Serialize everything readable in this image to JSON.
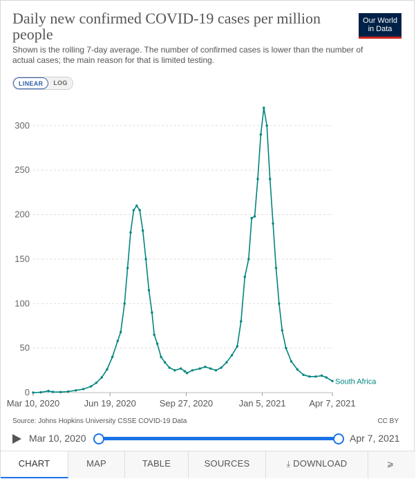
{
  "header": {
    "title": "Daily new confirmed COVID-19 cases per million people",
    "subtitle": "Shown is the rolling 7-day average. The number of confirmed cases is lower than the number of actual cases; the main reason for that is limited testing.",
    "logo_line1": "Our World",
    "logo_line2": "in Data"
  },
  "scale_toggle": {
    "linear": "LINEAR",
    "log": "LOG",
    "selected": "LINEAR"
  },
  "chart_data": {
    "type": "line",
    "title": "Daily new confirmed COVID-19 cases per million people",
    "x_tick_labels": [
      "Mar 10, 2020",
      "Jun 19, 2020",
      "Sep 27, 2020",
      "Jan 5, 2021",
      "Apr 7, 2021"
    ],
    "y_ticks": [
      0,
      50,
      100,
      150,
      200,
      250,
      300
    ],
    "ylim": [
      0,
      320
    ],
    "xlim": [
      "2020-03-10",
      "2021-04-07"
    ],
    "grid": "horizontal dashed",
    "series": [
      {
        "name": "South Africa",
        "color": "#00847e",
        "points": [
          [
            "2020-03-10",
            0
          ],
          [
            "2020-03-20",
            0.3
          ],
          [
            "2020-03-30",
            1.8
          ],
          [
            "2020-04-05",
            0.8
          ],
          [
            "2020-04-15",
            0.6
          ],
          [
            "2020-04-25",
            1.2
          ],
          [
            "2020-05-05",
            2.5
          ],
          [
            "2020-05-15",
            4
          ],
          [
            "2020-05-25",
            7
          ],
          [
            "2020-06-01",
            11
          ],
          [
            "2020-06-08",
            17
          ],
          [
            "2020-06-15",
            26
          ],
          [
            "2020-06-22",
            40
          ],
          [
            "2020-06-29",
            58
          ],
          [
            "2020-07-03",
            68
          ],
          [
            "2020-07-08",
            100
          ],
          [
            "2020-07-12",
            140
          ],
          [
            "2020-07-16",
            180
          ],
          [
            "2020-07-20",
            205
          ],
          [
            "2020-07-24",
            210
          ],
          [
            "2020-07-28",
            205
          ],
          [
            "2020-08-01",
            182
          ],
          [
            "2020-08-05",
            150
          ],
          [
            "2020-08-09",
            115
          ],
          [
            "2020-08-13",
            90
          ],
          [
            "2020-08-16",
            65
          ],
          [
            "2020-08-20",
            55
          ],
          [
            "2020-08-25",
            40
          ],
          [
            "2020-08-30",
            34
          ],
          [
            "2020-09-05",
            28
          ],
          [
            "2020-09-12",
            25
          ],
          [
            "2020-09-20",
            27
          ],
          [
            "2020-09-25",
            24
          ],
          [
            "2020-09-28",
            22
          ],
          [
            "2020-10-05",
            25
          ],
          [
            "2020-10-15",
            27
          ],
          [
            "2020-10-22",
            29
          ],
          [
            "2020-10-29",
            27
          ],
          [
            "2020-11-05",
            25
          ],
          [
            "2020-11-12",
            28
          ],
          [
            "2020-11-19",
            34
          ],
          [
            "2020-11-26",
            42
          ],
          [
            "2020-12-03",
            52
          ],
          [
            "2020-12-08",
            80
          ],
          [
            "2020-12-13",
            130
          ],
          [
            "2020-12-18",
            150
          ],
          [
            "2020-12-22",
            196
          ],
          [
            "2020-12-26",
            198
          ],
          [
            "2020-12-30",
            240
          ],
          [
            "2021-01-03",
            290
          ],
          [
            "2021-01-07",
            320
          ],
          [
            "2021-01-11",
            300
          ],
          [
            "2021-01-15",
            240
          ],
          [
            "2021-01-19",
            190
          ],
          [
            "2021-01-23",
            140
          ],
          [
            "2021-01-27",
            100
          ],
          [
            "2021-01-31",
            70
          ],
          [
            "2021-02-05",
            50
          ],
          [
            "2021-02-12",
            35
          ],
          [
            "2021-02-20",
            26
          ],
          [
            "2021-02-28",
            20
          ],
          [
            "2021-03-08",
            18
          ],
          [
            "2021-03-16",
            18
          ],
          [
            "2021-03-24",
            19
          ],
          [
            "2021-03-30",
            17
          ],
          [
            "2021-04-07",
            13
          ]
        ]
      }
    ]
  },
  "footer": {
    "source": "Source: Johns Hopkins University CSSE COVID-19 Data",
    "license": "CC BY"
  },
  "timeline": {
    "start_label": "Mar 10, 2020",
    "end_label": "Apr 7, 2021"
  },
  "tabs": [
    {
      "label": "CHART",
      "icon": ""
    },
    {
      "label": "MAP",
      "icon": ""
    },
    {
      "label": "TABLE",
      "icon": ""
    },
    {
      "label": "SOURCES",
      "icon": ""
    },
    {
      "label": "DOWNLOAD",
      "icon": "download-icon"
    },
    {
      "label": "",
      "icon": "share-icon"
    }
  ]
}
